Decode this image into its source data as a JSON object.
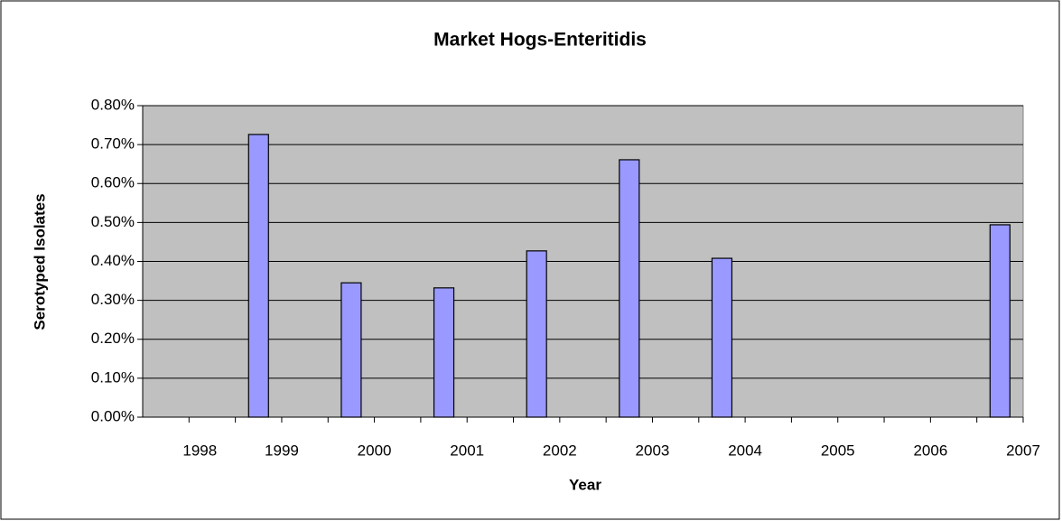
{
  "chart_data": {
    "type": "bar",
    "title": "Market Hogs-Enteritidis",
    "x_label": "Year",
    "y_label": "Serotyped Isolates",
    "categories": [
      "1998",
      "1999",
      "2000",
      "2001",
      "2002",
      "2003",
      "2004",
      "2005",
      "2006",
      "2007"
    ],
    "values": [
      0,
      0.726,
      0.345,
      0.332,
      0.427,
      0.661,
      0.408,
      0,
      0,
      0.494
    ],
    "color": "#9999ff",
    "ylim": [
      0,
      0.8
    ],
    "yticks": [
      {
        "value": 0,
        "label": "0.00%"
      },
      {
        "value": 0.1,
        "label": "0.10%"
      },
      {
        "value": 0.2,
        "label": "0.20%"
      },
      {
        "value": 0.3,
        "label": "0.30%"
      },
      {
        "value": 0.4,
        "label": "0.40%"
      },
      {
        "value": 0.5,
        "label": "0.50%"
      },
      {
        "value": 0.6,
        "label": "0.60%"
      },
      {
        "value": 0.7,
        "label": "0.70%"
      },
      {
        "value": 0.8,
        "label": "0.80%"
      }
    ],
    "grid": true
  }
}
